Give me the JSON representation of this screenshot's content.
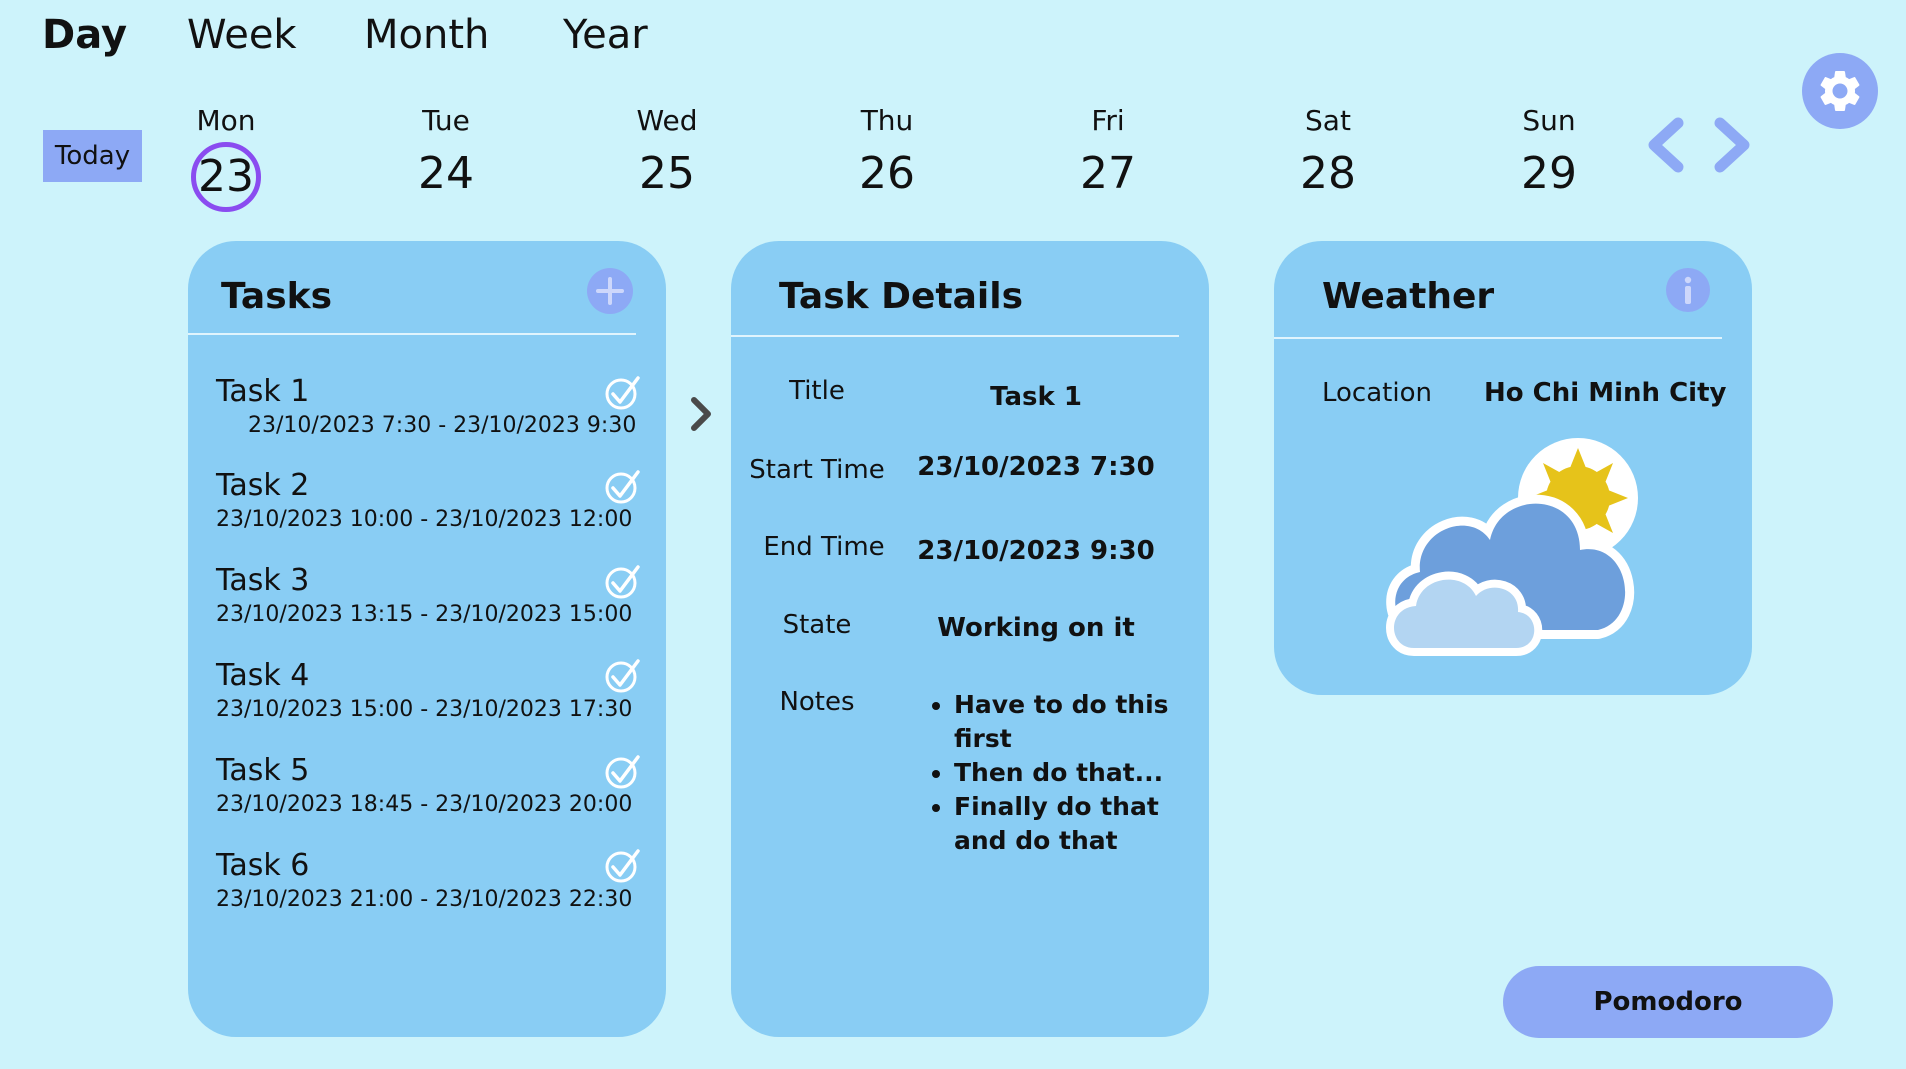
{
  "view_tabs": [
    {
      "label": "Day",
      "active": true
    },
    {
      "label": "Week",
      "active": false
    },
    {
      "label": "Month",
      "active": false
    },
    {
      "label": "Year",
      "active": false
    }
  ],
  "today_label": "Today",
  "week_days": [
    {
      "name": "Mon",
      "date": "23",
      "selected": true
    },
    {
      "name": "Tue",
      "date": "24",
      "selected": false
    },
    {
      "name": "Wed",
      "date": "25",
      "selected": false
    },
    {
      "name": "Thu",
      "date": "26",
      "selected": false
    },
    {
      "name": "Fri",
      "date": "27",
      "selected": false
    },
    {
      "name": "Sat",
      "date": "28",
      "selected": false
    },
    {
      "name": "Sun",
      "date": "29",
      "selected": false
    }
  ],
  "tasks_panel": {
    "title": "Tasks",
    "items": [
      {
        "name": "Task  1",
        "time": "23/10/2023 7:30  - 23/10/2023 9:30"
      },
      {
        "name": "Task  2",
        "time": "23/10/2023 10:00  - 23/10/2023 12:00"
      },
      {
        "name": "Task  3",
        "time": "23/10/2023 13:15  - 23/10/2023 15:00"
      },
      {
        "name": "Task  4",
        "time": "23/10/2023 15:00  - 23/10/2023 17:30"
      },
      {
        "name": "Task  5",
        "time": "23/10/2023 18:45  - 23/10/2023 20:00"
      },
      {
        "name": "Task  6",
        "time": "23/10/2023 21:00  - 23/10/2023 22:30"
      }
    ]
  },
  "details_panel": {
    "title": "Task Details",
    "title_label": "Title",
    "title_value": "Task 1",
    "start_label": "Start Time",
    "start_value": "23/10/2023 7:30",
    "end_label": "End Time",
    "end_value": "23/10/2023 9:30",
    "state_label": "State",
    "state_value": "Working on it",
    "notes_label": "Notes",
    "notes": [
      "Have to do this first",
      "Then do that...",
      "Finally do that and do that"
    ]
  },
  "weather_panel": {
    "title": "Weather",
    "location_label": "Location",
    "location_value": "Ho Chi Minh City",
    "condition_icon": "partly-cloudy-icon"
  },
  "pomodoro_label": "Pomodoro",
  "colors": {
    "background": "#cdf3fb",
    "panel": "#89cdf4",
    "accent": "#8da9f5",
    "selected_ring": "#8a4cf0"
  }
}
